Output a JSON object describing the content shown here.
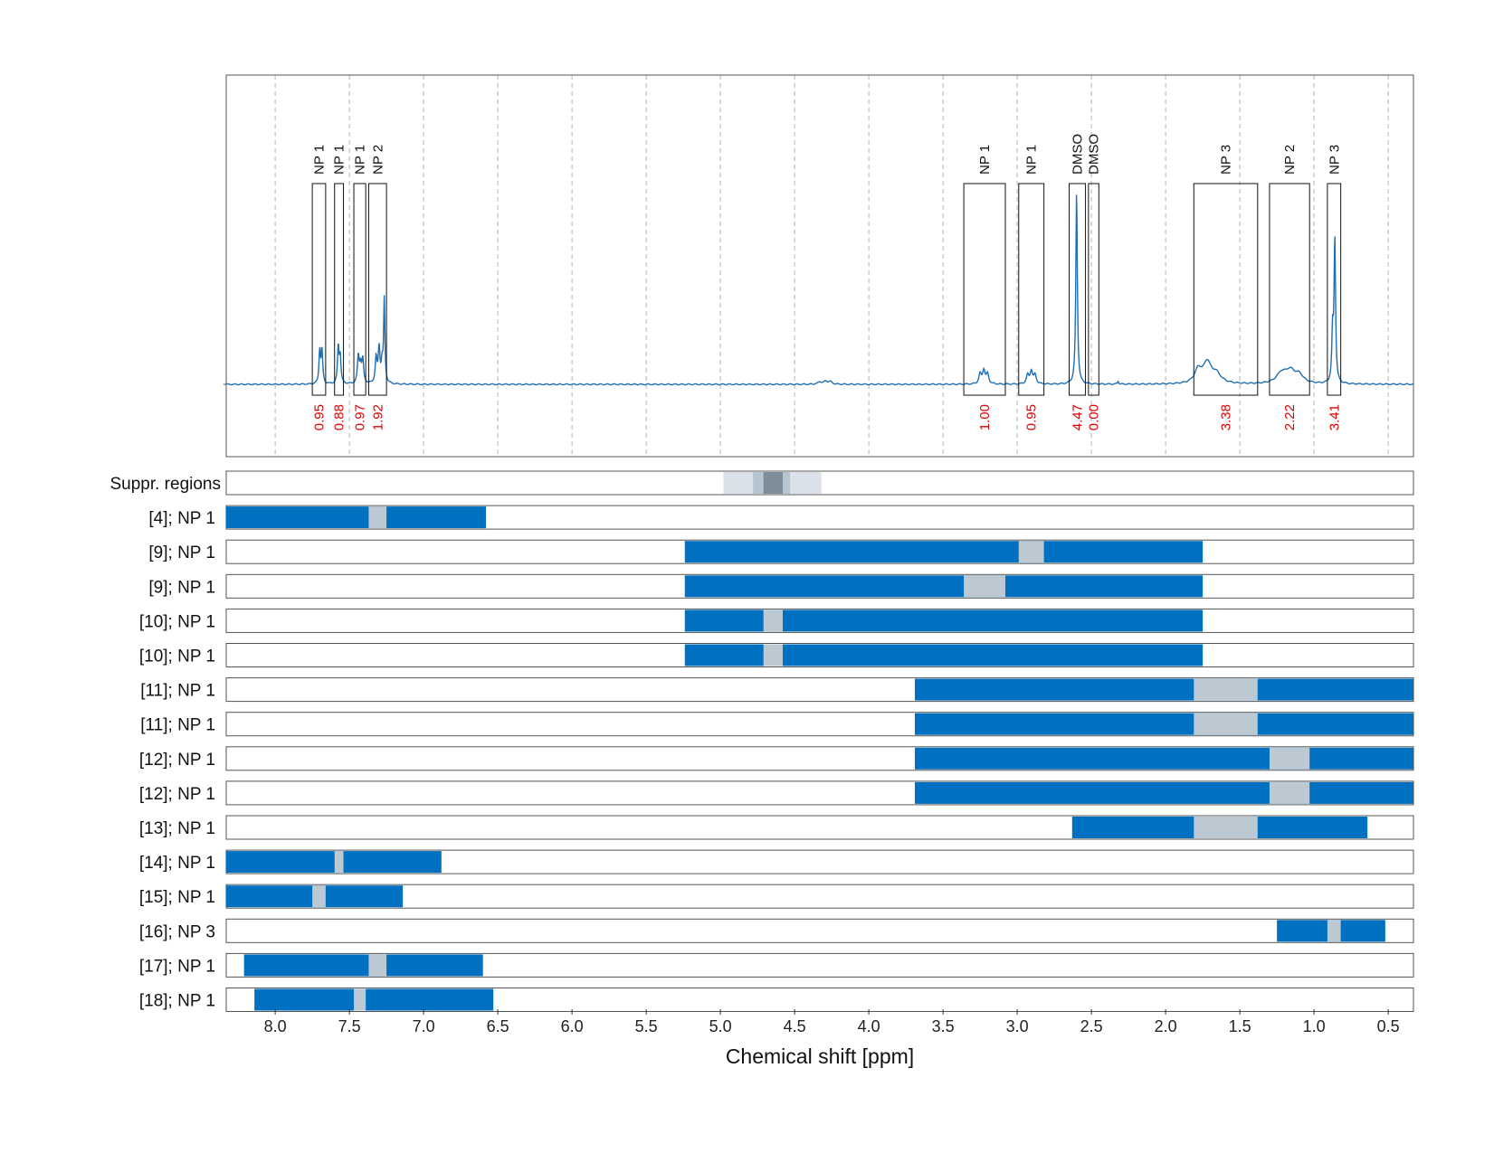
{
  "chart_data": {
    "type": "nmr-spectrum-with-row-ranges",
    "xlabel": "Chemical shift [ppm]",
    "x_axis_reversed": true,
    "xlim": [
      8.33,
      0.33
    ],
    "xticks": [
      8.0,
      7.5,
      7.0,
      6.5,
      6.0,
      5.5,
      5.0,
      4.5,
      4.0,
      3.5,
      3.0,
      2.5,
      2.0,
      1.5,
      1.0,
      0.5
    ],
    "xtick_labels": [
      "8.0",
      "7.5",
      "7.0",
      "6.5",
      "6.0",
      "5.5",
      "5.0",
      "4.5",
      "4.0",
      "3.5",
      "3.0",
      "2.5",
      "2.0",
      "1.5",
      "1.0",
      "0.5"
    ],
    "grid": "vertical dashed",
    "spectrum_color": "#1f6fb4",
    "annotations": [
      {
        "label": "NP 1",
        "from": 7.75,
        "to": 7.66,
        "integral": "0.95"
      },
      {
        "label": "NP 1",
        "from": 7.6,
        "to": 7.54,
        "integral": "0.88"
      },
      {
        "label": "NP 1",
        "from": 7.47,
        "to": 7.39,
        "integral": "0.97"
      },
      {
        "label": "NP 2",
        "from": 7.37,
        "to": 7.25,
        "integral": "1.92"
      },
      {
        "label": "NP 1",
        "from": 3.36,
        "to": 3.08,
        "integral": "1.00"
      },
      {
        "label": "NP 1",
        "from": 2.99,
        "to": 2.82,
        "integral": "0.95"
      },
      {
        "label": "DMSO",
        "from": 2.65,
        "to": 2.54,
        "integral": "4.47"
      },
      {
        "label": "DMSO",
        "from": 2.52,
        "to": 2.45,
        "integral": "0.00"
      },
      {
        "label": "NP 3",
        "from": 1.81,
        "to": 1.38,
        "integral": "3.38"
      },
      {
        "label": "NP 2",
        "from": 1.3,
        "to": 1.03,
        "integral": "2.22"
      },
      {
        "label": "NP 3",
        "from": 0.91,
        "to": 0.82,
        "integral": "3.41"
      }
    ],
    "peaks": [
      {
        "center": 7.7,
        "width": 0.006,
        "height": 0.17
      },
      {
        "center": 7.685,
        "width": 0.006,
        "height": 0.17
      },
      {
        "center": 7.575,
        "width": 0.006,
        "height": 0.19
      },
      {
        "center": 7.562,
        "width": 0.006,
        "height": 0.14
      },
      {
        "center": 7.44,
        "width": 0.007,
        "height": 0.14
      },
      {
        "center": 7.425,
        "width": 0.007,
        "height": 0.09
      },
      {
        "center": 7.41,
        "width": 0.007,
        "height": 0.12
      },
      {
        "center": 7.32,
        "width": 0.007,
        "height": 0.13
      },
      {
        "center": 7.3,
        "width": 0.007,
        "height": 0.18
      },
      {
        "center": 7.28,
        "width": 0.007,
        "height": 0.1
      },
      {
        "center": 7.265,
        "width": 0.005,
        "height": 0.43
      },
      {
        "center": 4.33,
        "width": 0.015,
        "height": 0.012
      },
      {
        "center": 4.29,
        "width": 0.015,
        "height": 0.015
      },
      {
        "center": 4.26,
        "width": 0.015,
        "height": 0.012
      },
      {
        "center": 3.25,
        "width": 0.01,
        "height": 0.05
      },
      {
        "center": 3.225,
        "width": 0.01,
        "height": 0.07
      },
      {
        "center": 3.2,
        "width": 0.01,
        "height": 0.05
      },
      {
        "center": 2.93,
        "width": 0.01,
        "height": 0.045
      },
      {
        "center": 2.905,
        "width": 0.01,
        "height": 0.065
      },
      {
        "center": 2.88,
        "width": 0.01,
        "height": 0.045
      },
      {
        "center": 2.6,
        "width": 0.006,
        "height": 0.99
      },
      {
        "center": 2.32,
        "width": 0.005,
        "height": 0.015
      },
      {
        "center": 1.78,
        "width": 0.03,
        "height": 0.07
      },
      {
        "center": 1.72,
        "width": 0.03,
        "height": 0.1
      },
      {
        "center": 1.66,
        "width": 0.04,
        "height": 0.05
      },
      {
        "center": 1.22,
        "width": 0.04,
        "height": 0.05
      },
      {
        "center": 1.16,
        "width": 0.04,
        "height": 0.06
      },
      {
        "center": 1.1,
        "width": 0.035,
        "height": 0.04
      },
      {
        "center": 0.86,
        "width": 0.006,
        "height": 0.74
      },
      {
        "center": 0.875,
        "width": 0.006,
        "height": 0.25
      }
    ],
    "suppressed_regions": {
      "label": "Suppr. regions",
      "bands": [
        {
          "from": 4.98,
          "to": 4.32,
          "color": "#dae1e8"
        },
        {
          "from": 4.78,
          "to": 4.53,
          "color": "#b8c4ce"
        },
        {
          "from": 4.71,
          "to": 4.58,
          "color": "#7d8d9a"
        }
      ]
    },
    "rows": [
      {
        "label": "[4]; NP 1",
        "from": 8.33,
        "to": 6.58,
        "gap": [
          7.37,
          7.25
        ]
      },
      {
        "label": "[9]; NP 1",
        "from": 5.24,
        "to": 1.75,
        "gap": [
          2.99,
          2.82
        ]
      },
      {
        "label": "[9]; NP 1",
        "from": 5.24,
        "to": 1.75,
        "gap": [
          3.36,
          3.08
        ]
      },
      {
        "label": "[10]; NP 1",
        "from": 5.24,
        "to": 1.75,
        "gap": [
          4.71,
          4.58
        ]
      },
      {
        "label": "[10]; NP 1",
        "from": 5.24,
        "to": 1.75,
        "gap": [
          4.71,
          4.58
        ]
      },
      {
        "label": "[11]; NP 1",
        "from": 3.69,
        "to": 0.33,
        "gap": [
          1.81,
          1.38
        ]
      },
      {
        "label": "[11]; NP 1",
        "from": 3.69,
        "to": 0.33,
        "gap": [
          1.81,
          1.38
        ]
      },
      {
        "label": "[12]; NP 1",
        "from": 3.69,
        "to": 0.33,
        "gap": [
          1.3,
          1.03
        ]
      },
      {
        "label": "[12]; NP 1",
        "from": 3.69,
        "to": 0.33,
        "gap": [
          1.3,
          1.03
        ]
      },
      {
        "label": "[13]; NP 1",
        "from": 2.63,
        "to": 0.64,
        "gap": [
          1.81,
          1.38
        ]
      },
      {
        "label": "[14]; NP 1",
        "from": 8.33,
        "to": 6.88,
        "gap": [
          7.6,
          7.54
        ]
      },
      {
        "label": "[15]; NP 1",
        "from": 8.33,
        "to": 7.14,
        "gap": [
          7.75,
          7.66
        ]
      },
      {
        "label": "[16]; NP 3",
        "from": 1.25,
        "to": 0.52,
        "gap": [
          0.91,
          0.82
        ]
      },
      {
        "label": "[17]; NP 1",
        "from": 8.21,
        "to": 6.6,
        "gap": [
          7.37,
          7.25
        ]
      },
      {
        "label": "[18]; NP 1",
        "from": 8.14,
        "to": 6.53,
        "gap": [
          7.47,
          7.39
        ]
      }
    ],
    "colors": {
      "bar": "#0070c0",
      "gap": "#bcc9d3",
      "integral_text": "#e00000",
      "frame": "#555555",
      "grid": "#b4b4b4"
    }
  }
}
